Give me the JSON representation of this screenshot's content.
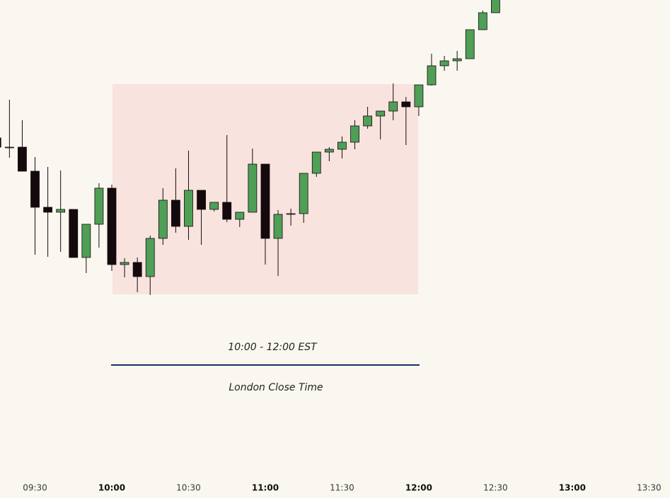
{
  "chart_data": {
    "type": "candlestick",
    "up_color": "#4f9f57",
    "down_color": "#140a0d",
    "ylim": [
      30,
      700
    ],
    "candles": [
      {
        "open": 505,
        "high": 505,
        "low": 492,
        "close": 492
      },
      {
        "open": 492,
        "high": 559,
        "low": 477,
        "close": 492
      },
      {
        "open": 492,
        "high": 530,
        "low": 458,
        "close": 458
      },
      {
        "open": 458,
        "high": 478,
        "low": 340,
        "close": 407
      },
      {
        "open": 407,
        "high": 464,
        "low": 337,
        "close": 400
      },
      {
        "open": 400,
        "high": 459,
        "low": 344,
        "close": 404
      },
      {
        "open": 404,
        "high": 404,
        "low": 336,
        "close": 336
      },
      {
        "open": 336,
        "high": 383,
        "low": 314,
        "close": 383
      },
      {
        "open": 383,
        "high": 441,
        "low": 350,
        "close": 434
      },
      {
        "open": 434,
        "high": 439,
        "low": 317,
        "close": 326
      },
      {
        "open": 326,
        "high": 335,
        "low": 308,
        "close": 329
      },
      {
        "open": 329,
        "high": 336,
        "low": 287,
        "close": 309
      },
      {
        "open": 309,
        "high": 367,
        "low": 283,
        "close": 363
      },
      {
        "open": 363,
        "high": 434,
        "low": 354,
        "close": 417
      },
      {
        "open": 417,
        "high": 462,
        "low": 371,
        "close": 380
      },
      {
        "open": 380,
        "high": 487,
        "low": 361,
        "close": 431
      },
      {
        "open": 431,
        "high": 431,
        "low": 354,
        "close": 404
      },
      {
        "open": 404,
        "high": 414,
        "low": 401,
        "close": 414
      },
      {
        "open": 414,
        "high": 509,
        "low": 386,
        "close": 390
      },
      {
        "open": 390,
        "high": 400,
        "low": 379,
        "close": 400
      },
      {
        "open": 400,
        "high": 490,
        "low": 400,
        "close": 468
      },
      {
        "open": 468,
        "high": 468,
        "low": 326,
        "close": 363
      },
      {
        "open": 363,
        "high": 403,
        "low": 310,
        "close": 397
      },
      {
        "open": 397,
        "high": 405,
        "low": 381,
        "close": 398
      },
      {
        "open": 398,
        "high": 455,
        "low": 385,
        "close": 455
      },
      {
        "open": 455,
        "high": 485,
        "low": 450,
        "close": 485
      },
      {
        "open": 485,
        "high": 492,
        "low": 472,
        "close": 489
      },
      {
        "open": 489,
        "high": 507,
        "low": 476,
        "close": 499
      },
      {
        "open": 499,
        "high": 530,
        "low": 489,
        "close": 522
      },
      {
        "open": 522,
        "high": 549,
        "low": 518,
        "close": 536
      },
      {
        "open": 536,
        "high": 543,
        "low": 503,
        "close": 543
      },
      {
        "open": 543,
        "high": 582,
        "low": 530,
        "close": 556
      },
      {
        "open": 556,
        "high": 563,
        "low": 495,
        "close": 549
      },
      {
        "open": 549,
        "high": 580,
        "low": 536,
        "close": 580
      },
      {
        "open": 580,
        "high": 624,
        "low": 579,
        "close": 607
      },
      {
        "open": 607,
        "high": 621,
        "low": 600,
        "close": 614
      },
      {
        "open": 614,
        "high": 628,
        "low": 600,
        "close": 617
      },
      {
        "open": 617,
        "high": 658,
        "low": 617,
        "close": 658
      },
      {
        "open": 658,
        "high": 685,
        "low": 658,
        "close": 682
      },
      {
        "open": 682,
        "high": 710,
        "low": 682,
        "close": 705
      }
    ],
    "xticks": [
      {
        "label": "09:30",
        "bold": false
      },
      {
        "label": "10:00",
        "bold": true
      },
      {
        "label": "10:30",
        "bold": false
      },
      {
        "label": "11:00",
        "bold": true
      },
      {
        "label": "11:30",
        "bold": false
      },
      {
        "label": "12:00",
        "bold": true
      },
      {
        "label": "12:30",
        "bold": false
      },
      {
        "label": "13:00",
        "bold": true
      },
      {
        "label": "13:30",
        "bold": false
      }
    ],
    "annotation": {
      "range": "10:00 - 12:00 EST",
      "label": "London Close Time"
    }
  }
}
